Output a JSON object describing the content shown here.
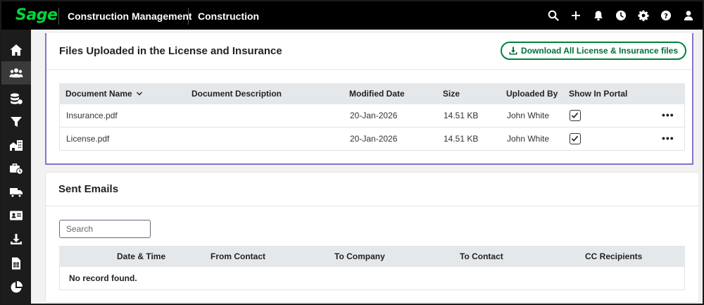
{
  "header": {
    "logo": "Sage",
    "app_name": "Construction Management",
    "module": "Construction",
    "icons": [
      "search-icon",
      "plus-icon",
      "bell-icon",
      "clock-icon",
      "gear-icon",
      "help-icon",
      "user-icon"
    ]
  },
  "rail": {
    "items": [
      "home-icon",
      "users-icon",
      "database-icon",
      "filter-icon",
      "buildings-icon",
      "briefcase-clock-icon",
      "truck-icon",
      "id-card-icon",
      "download-icon",
      "spreadsheet-icon",
      "pie-chart-icon"
    ],
    "active_index": 1
  },
  "files_card": {
    "title": "Files Uploaded in the License and Insurance",
    "download_button": "Download All License & Insurance files",
    "columns": {
      "name": "Document Name",
      "description": "Document Description",
      "modified": "Modified Date",
      "size": "Size",
      "uploaded_by": "Uploaded By",
      "portal": "Show In Portal"
    },
    "rows": [
      {
        "name": "Insurance.pdf",
        "description": "",
        "modified": "20-Jan-2026",
        "size": "14.51 KB",
        "uploaded_by": "John White",
        "portal": true,
        "more": "•••"
      },
      {
        "name": "License.pdf",
        "description": "",
        "modified": "20-Jan-2026",
        "size": "14.51 KB",
        "uploaded_by": "John White",
        "portal": true,
        "more": "•••"
      }
    ]
  },
  "emails_card": {
    "title": "Sent Emails",
    "search": {
      "placeholder": "Search",
      "value": ""
    },
    "columns": {
      "datetime": "Date & Time",
      "from_contact": "From Contact",
      "to_company": "To Company",
      "to_contact": "To Contact",
      "cc": "CC Recipients"
    },
    "empty_message": "No record found."
  },
  "colors": {
    "brand_green": "#00d639",
    "link_green": "#00803a",
    "highlight_border": "#8c72c8",
    "grid_header_bg": "#e5e8eb"
  }
}
